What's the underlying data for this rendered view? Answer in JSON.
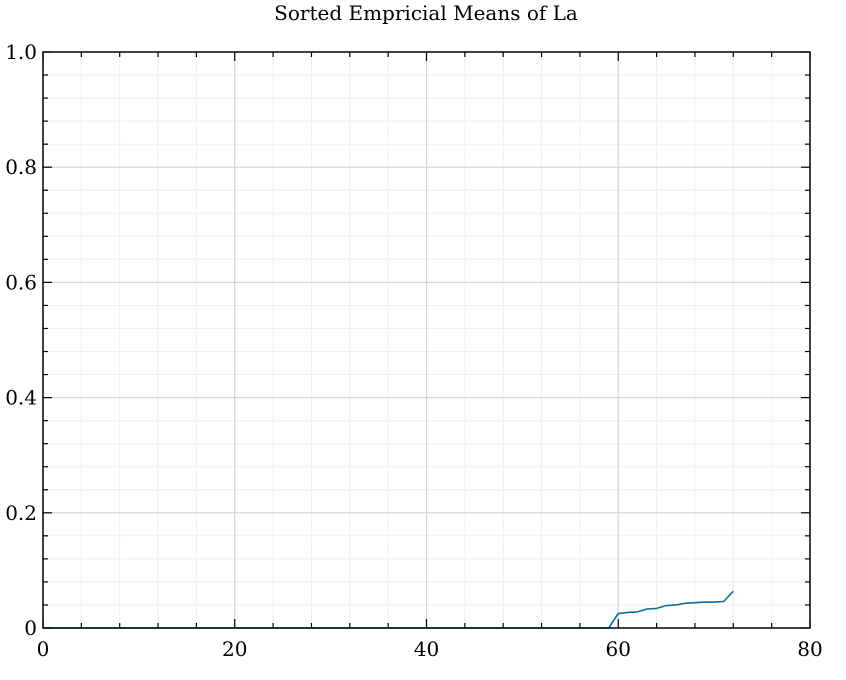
{
  "chart_data": {
    "type": "line",
    "title": "Sorted Empricial Means of La",
    "xlabel": "",
    "ylabel": "",
    "xlim": [
      0,
      80
    ],
    "ylim": [
      0,
      1.0
    ],
    "x_ticks": [
      0,
      20,
      40,
      60,
      80
    ],
    "x_tick_labels": [
      "0",
      "20",
      "40",
      "60",
      "80"
    ],
    "y_ticks": [
      0,
      0.2,
      0.4,
      0.6,
      0.8,
      1.0
    ],
    "y_tick_labels": [
      "0",
      "0.2",
      "0.4",
      "0.6",
      "0.8",
      "1.0"
    ],
    "grid": true,
    "series": [
      {
        "color": "#0a6f9a",
        "x": [
          0,
          1,
          2,
          3,
          4,
          5,
          6,
          7,
          8,
          9,
          10,
          11,
          12,
          13,
          14,
          15,
          16,
          17,
          18,
          19,
          20,
          21,
          22,
          23,
          24,
          25,
          26,
          27,
          28,
          29,
          30,
          31,
          32,
          33,
          34,
          35,
          36,
          37,
          38,
          39,
          40,
          41,
          42,
          43,
          44,
          45,
          46,
          47,
          48,
          49,
          50,
          51,
          52,
          53,
          54,
          55,
          56,
          57,
          58,
          59,
          60,
          61,
          62,
          63,
          64,
          65,
          66,
          67,
          68,
          69,
          70,
          71,
          72
        ],
        "values": [
          0,
          0,
          0,
          0,
          0,
          0,
          0,
          0,
          0,
          0,
          0,
          0,
          0,
          0,
          0,
          0,
          0,
          0,
          0,
          0,
          0,
          0,
          0,
          0,
          0,
          0,
          0,
          0,
          0,
          0,
          0,
          0,
          0,
          0,
          0,
          0,
          0,
          0,
          0,
          0,
          0,
          0,
          0,
          0,
          0,
          0,
          0,
          0,
          0,
          0,
          0,
          0,
          0,
          0,
          0,
          0,
          0,
          0,
          0,
          0,
          0.025,
          0.027,
          0.028,
          0.033,
          0.034,
          0.039,
          0.04,
          0.043,
          0.044,
          0.045,
          0.045,
          0.046,
          0.064
        ]
      }
    ]
  }
}
